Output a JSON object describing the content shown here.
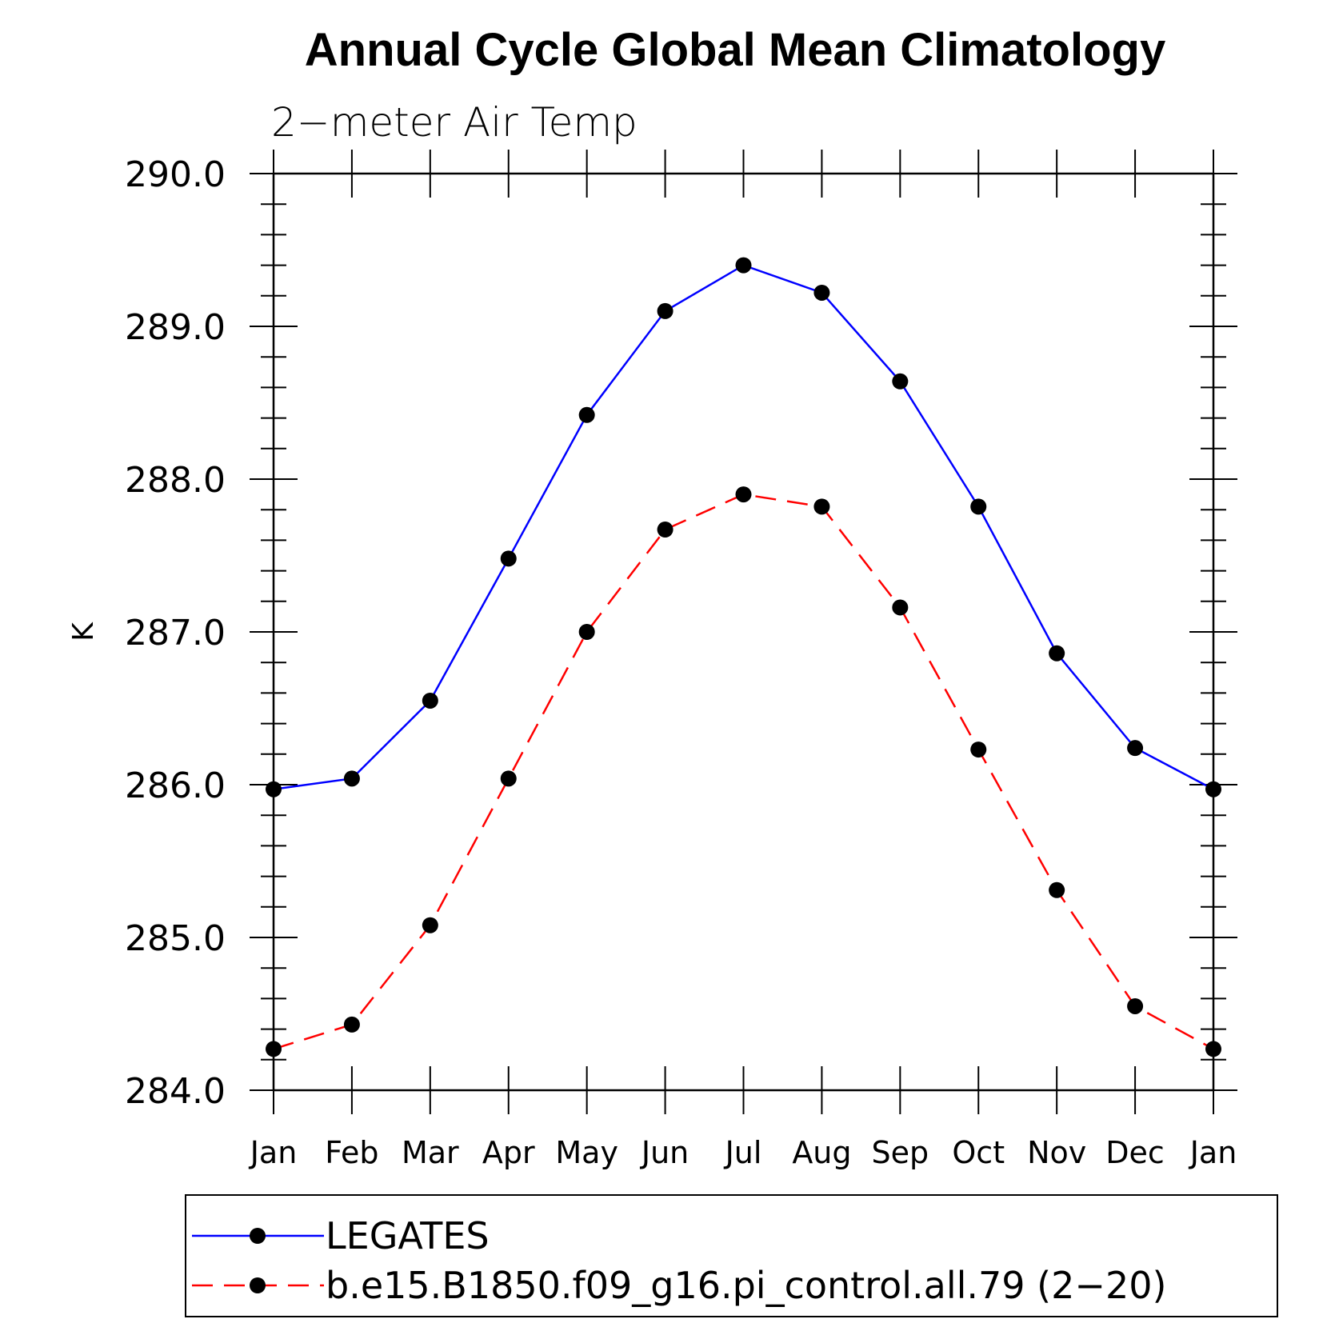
{
  "chart_data": {
    "type": "line",
    "title": "Annual Cycle Global Mean Climatology",
    "subtitle": "2−meter Air Temp",
    "xlabel": "",
    "ylabel": "K",
    "categories": [
      "Jan",
      "Feb",
      "Mar",
      "Apr",
      "May",
      "Jun",
      "Jul",
      "Aug",
      "Sep",
      "Oct",
      "Nov",
      "Dec",
      "Jan"
    ],
    "ylim": [
      284.0,
      290.0
    ],
    "yticks": [
      "284.0",
      "285.0",
      "286.0",
      "287.0",
      "288.0",
      "289.0",
      "290.0"
    ],
    "grid": false,
    "legend_position": "bottom",
    "series": [
      {
        "name": "LEGATES",
        "color": "#0000ff",
        "line_style": "solid",
        "marker": "filled-circle",
        "values": [
          285.97,
          286.04,
          286.55,
          287.48,
          288.42,
          289.1,
          289.4,
          289.22,
          288.64,
          287.82,
          286.86,
          286.24,
          285.97
        ]
      },
      {
        "name": "b.e15.B1850.f09_g16.pi_control.all.79 (2−20)",
        "color": "#ff0000",
        "line_style": "dashed",
        "marker": "filled-circle",
        "values": [
          284.27,
          284.43,
          285.08,
          286.04,
          287.0,
          287.67,
          287.9,
          287.82,
          287.16,
          286.23,
          285.31,
          284.55,
          284.27
        ]
      }
    ]
  }
}
